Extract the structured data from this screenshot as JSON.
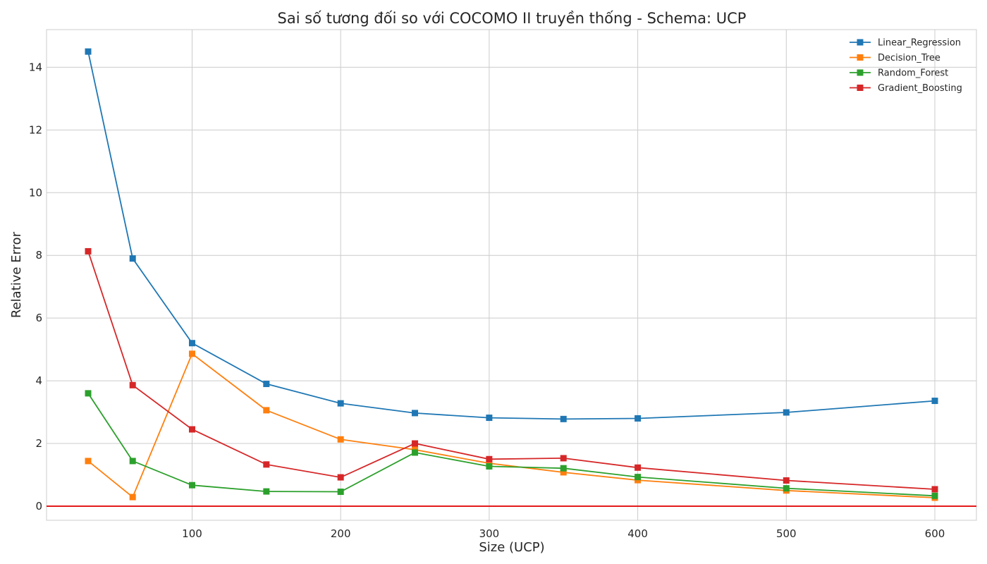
{
  "chart_data": {
    "type": "line",
    "title": "Sai số tương đối so với COCOMO II truyền thống - Schema: UCP",
    "xlabel": "Size (UCP)",
    "ylabel": "Relative Error",
    "xlim": [
      2,
      628
    ],
    "ylim": [
      -0.45,
      15.2
    ],
    "xticks": [
      100,
      200,
      300,
      400,
      500,
      600
    ],
    "yticks": [
      0,
      2,
      4,
      6,
      8,
      10,
      12,
      14
    ],
    "grid": true,
    "legend_position": "top-right",
    "reference_line": {
      "y": 0,
      "color": "#e31a1c"
    },
    "x": [
      30,
      60,
      100,
      150,
      200,
      250,
      300,
      350,
      400,
      500,
      600
    ],
    "series": [
      {
        "name": "Linear_Regression",
        "color": "#1f77b4",
        "marker": "square",
        "values": [
          14.5,
          7.9,
          5.2,
          3.9,
          3.28,
          2.97,
          2.82,
          2.78,
          2.8,
          2.99,
          3.36
        ]
      },
      {
        "name": "Decision_Tree",
        "color": "#ff7f0e",
        "marker": "square",
        "values": [
          1.44,
          0.29,
          4.86,
          3.06,
          2.13,
          1.8,
          1.37,
          1.08,
          0.83,
          0.5,
          0.27
        ]
      },
      {
        "name": "Random_Forest",
        "color": "#2ca02c",
        "marker": "square",
        "values": [
          3.6,
          1.44,
          0.67,
          0.47,
          0.46,
          1.71,
          1.27,
          1.21,
          0.93,
          0.57,
          0.33
        ]
      },
      {
        "name": "Gradient_Boosting",
        "color": "#d62728",
        "marker": "square",
        "values": [
          8.13,
          3.86,
          2.45,
          1.33,
          0.92,
          2.0,
          1.5,
          1.53,
          1.23,
          0.82,
          0.54
        ]
      }
    ]
  }
}
